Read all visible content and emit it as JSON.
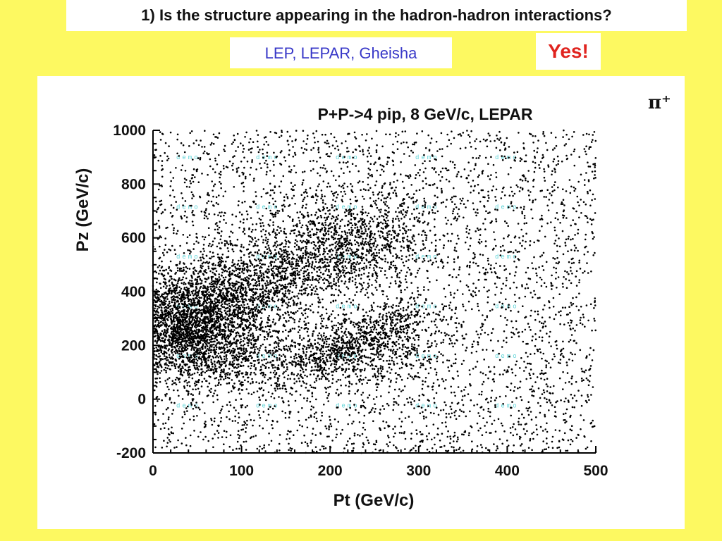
{
  "question": "1) Is the structure appearing in the hadron-hadron interactions?",
  "sources": "LEP, LEPAR, Gheisha",
  "answer": "Yes!",
  "answer_color": "#e0241f",
  "sources_color": "#3838c8",
  "background_color": "#fdf961",
  "particle_label": "π⁺",
  "watermark_text": "demo",
  "chart_data": {
    "type": "scatter",
    "title": "P+P->4 pip, 8 GeV/c, LEPAR",
    "xlabel": "Pt (GeV/c)",
    "ylabel": "Pz (GeV/c)",
    "xlim": [
      0,
      500
    ],
    "ylim": [
      -200,
      1000
    ],
    "x_ticks": [
      0,
      100,
      200,
      300,
      400,
      500
    ],
    "y_ticks": [
      -200,
      0,
      200,
      400,
      600,
      800,
      1000
    ],
    "grid": false,
    "legend": "none",
    "marker_color": "#000000",
    "density_regions": [
      {
        "name": "uniform background",
        "x_range": [
          0,
          500
        ],
        "y_range": [
          -200,
          1000
        ],
        "points": 4200
      },
      {
        "name": "dense band",
        "from": [
          0,
          250
        ],
        "to": [
          270,
          650
        ],
        "half_width": 90,
        "points": 2600
      },
      {
        "name": "low-Pt core",
        "center": [
          40,
          280
        ],
        "spread": [
          40,
          90
        ],
        "points": 1800
      },
      {
        "name": "lower band",
        "from": [
          20,
          120
        ],
        "to": [
          300,
          180
        ],
        "half_width": 60,
        "points": 1000
      },
      {
        "name": "diagonal ridge",
        "from": [
          180,
          150
        ],
        "to": [
          300,
          330
        ],
        "half_width": 40,
        "points": 500
      }
    ]
  }
}
